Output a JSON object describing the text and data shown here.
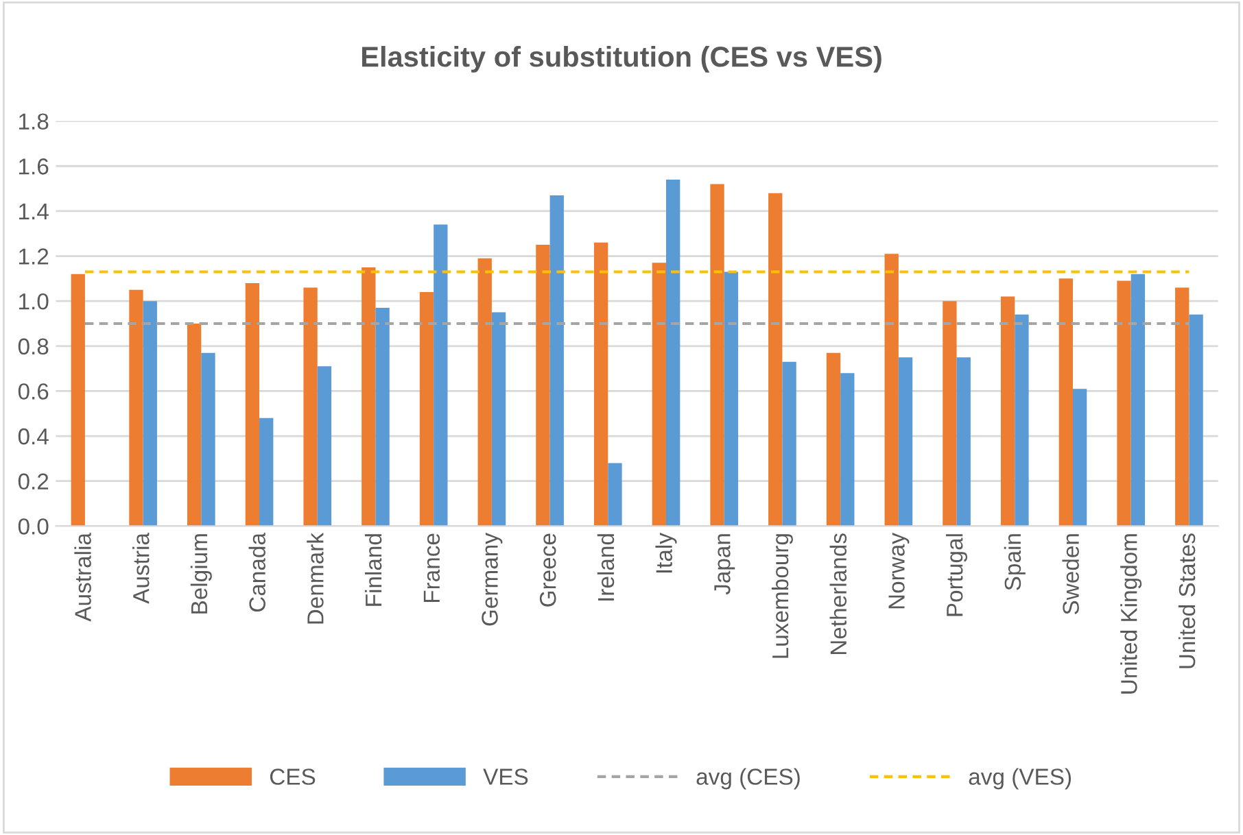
{
  "chart_data": {
    "type": "bar",
    "title": "Elasticity of substitution (CES vs VES)",
    "categories": [
      "Australia",
      "Austria",
      "Belgium",
      "Canada",
      "Denmark",
      "Finland",
      "France",
      "Germany",
      "Greece",
      "Ireland",
      "Italy",
      "Japan",
      "Luxembourg",
      "Netherlands",
      "Norway",
      "Portugal",
      "Spain",
      "Sweden",
      "United Kingdom",
      "United States"
    ],
    "series": [
      {
        "name": "CES",
        "color": "#ed7d31",
        "values": [
          1.12,
          1.05,
          0.9,
          1.08,
          1.06,
          1.15,
          1.04,
          1.19,
          1.25,
          1.26,
          1.17,
          1.52,
          1.48,
          0.77,
          1.21,
          1.0,
          1.02,
          1.1,
          1.09,
          1.06
        ]
      },
      {
        "name": "VES",
        "color": "#5b9bd5",
        "values": [
          null,
          1.0,
          0.77,
          0.48,
          0.71,
          0.97,
          1.34,
          0.95,
          1.47,
          0.28,
          1.54,
          1.13,
          0.73,
          0.68,
          0.75,
          0.75,
          0.94,
          0.61,
          1.12,
          0.94
        ]
      }
    ],
    "ref_lines": [
      {
        "axis": "y",
        "value": 0.9,
        "label": "avg (CES)",
        "color": "#a5a5a5",
        "line_style": "dashed"
      },
      {
        "axis": "y",
        "value": 1.13,
        "label": "avg (VES)",
        "color": "#ffc000",
        "line_style": "dashed"
      }
    ],
    "ylim": [
      0,
      1.8
    ],
    "yticks": [
      {
        "value": 0,
        "label": "0.0"
      },
      {
        "value": 0.2,
        "label": "0.2"
      },
      {
        "value": 0.4,
        "label": "0.4"
      },
      {
        "value": 0.6,
        "label": "0.6"
      },
      {
        "value": 0.8,
        "label": "0.8"
      },
      {
        "value": 1.0,
        "label": "1.0"
      },
      {
        "value": 1.2,
        "label": "1.2"
      },
      {
        "value": 1.4,
        "label": "1.4"
      },
      {
        "value": 1.6,
        "label": "1.6"
      },
      {
        "value": 1.8,
        "label": "1.8"
      }
    ],
    "grid": "y",
    "legend": "bottom"
  }
}
